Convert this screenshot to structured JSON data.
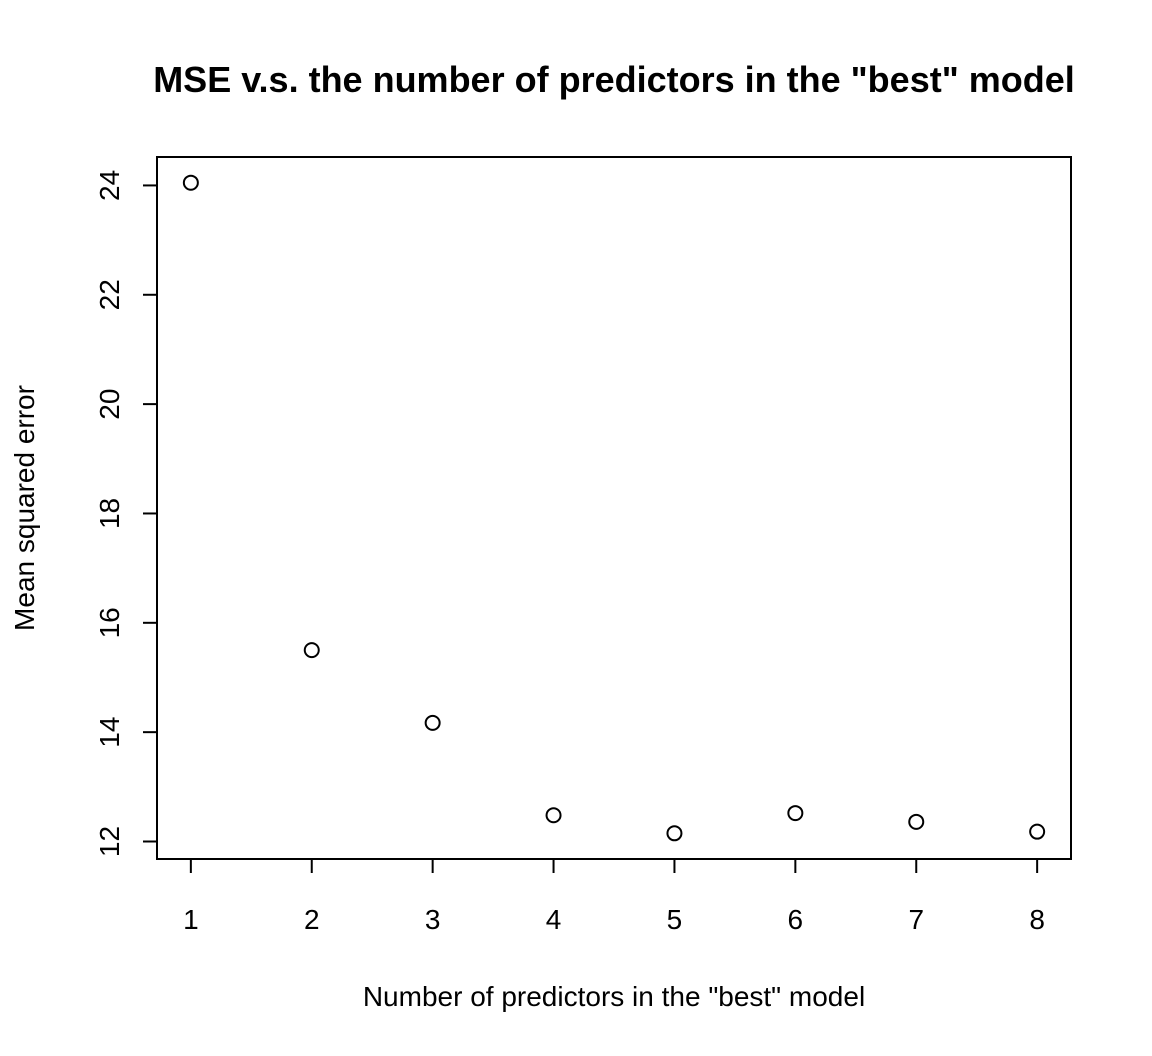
{
  "chart_data": {
    "type": "scatter",
    "title": "MSE v.s. the number of predictors in the \"best\" model",
    "xlabel": "Number of predictors in the \"best\" model",
    "ylabel": "Mean squared error",
    "x": [
      1,
      2,
      3,
      4,
      5,
      6,
      7,
      8
    ],
    "y": [
      24.05,
      15.5,
      14.17,
      12.48,
      12.15,
      12.52,
      12.36,
      12.18
    ],
    "xticks": [
      "1",
      "2",
      "3",
      "4",
      "5",
      "6",
      "7",
      "8"
    ],
    "yticks": [
      "12",
      "14",
      "16",
      "18",
      "20",
      "22",
      "24"
    ],
    "xlim": [
      0.72,
      8.28
    ],
    "ylim": [
      11.68,
      24.52
    ],
    "grid": false,
    "marker": "open-circle",
    "colors": {
      "marker": "#000000",
      "text": "#000000",
      "background": "#ffffff"
    }
  }
}
